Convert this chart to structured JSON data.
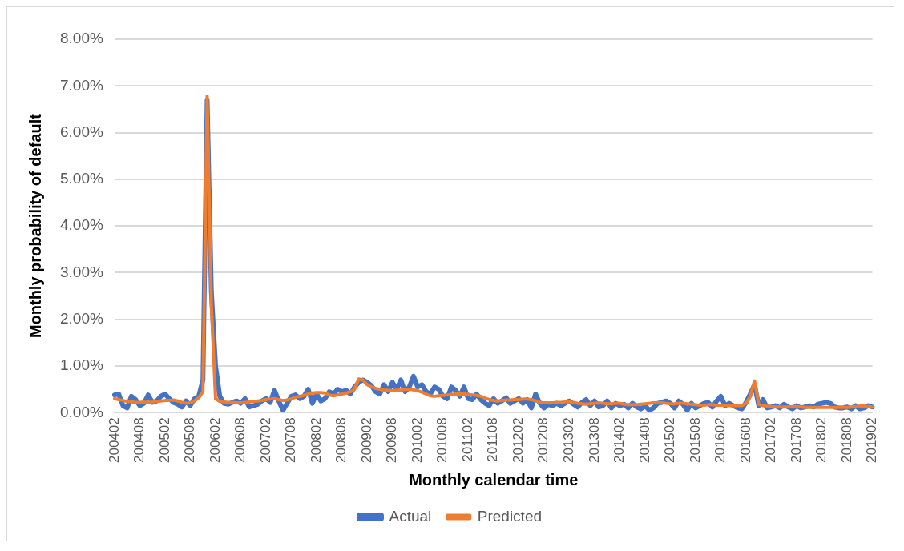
{
  "chart_data": {
    "type": "line",
    "xlabel": "Monthly calendar time",
    "ylabel": "Monthly probability of default",
    "categories": [
      "200402",
      null,
      null,
      null,
      null,
      null,
      "200408",
      null,
      null,
      null,
      null,
      null,
      "200502",
      null,
      null,
      null,
      null,
      null,
      "200508",
      null,
      null,
      null,
      null,
      null,
      "200602",
      null,
      null,
      null,
      null,
      null,
      "200608",
      null,
      null,
      null,
      null,
      null,
      "200702",
      null,
      null,
      null,
      null,
      null,
      "200708",
      null,
      null,
      null,
      null,
      null,
      "200802",
      null,
      null,
      null,
      null,
      null,
      "200808",
      null,
      null,
      null,
      null,
      null,
      "200902",
      null,
      null,
      null,
      null,
      null,
      "200908",
      null,
      null,
      null,
      null,
      null,
      "201002",
      null,
      null,
      null,
      null,
      null,
      "201008",
      null,
      null,
      null,
      null,
      null,
      "201102",
      null,
      null,
      null,
      null,
      null,
      "201108",
      null,
      null,
      null,
      null,
      null,
      "201202",
      null,
      null,
      null,
      null,
      null,
      "201208",
      null,
      null,
      null,
      null,
      null,
      "201302",
      null,
      null,
      null,
      null,
      null,
      "201308",
      null,
      null,
      null,
      null,
      null,
      "201402",
      null,
      null,
      null,
      null,
      null,
      "201408",
      null,
      null,
      null,
      null,
      null,
      "201502",
      null,
      null,
      null,
      null,
      null,
      "201508",
      null,
      null,
      null,
      null,
      null,
      "201602",
      null,
      null,
      null,
      null,
      null,
      "201608",
      null,
      null,
      null,
      null,
      null,
      "201702",
      null,
      null,
      null,
      null,
      null,
      "201708",
      null,
      null,
      null,
      null,
      null,
      "201802",
      null,
      null,
      null,
      null,
      null,
      "201808",
      null,
      null,
      null,
      null,
      null,
      "201902"
    ],
    "series": [
      {
        "name": "Actual",
        "color": "#4472c4",
        "values": [
          0.38,
          0.4,
          0.15,
          0.1,
          0.35,
          0.28,
          0.15,
          0.2,
          0.38,
          0.22,
          0.25,
          0.35,
          0.4,
          0.3,
          0.22,
          0.18,
          0.12,
          0.25,
          0.15,
          0.3,
          0.35,
          0.7,
          6.7,
          2.6,
          1.0,
          0.35,
          0.2,
          0.18,
          0.22,
          0.25,
          0.2,
          0.3,
          0.12,
          0.15,
          0.18,
          0.25,
          0.3,
          0.22,
          0.48,
          0.25,
          0.05,
          0.2,
          0.35,
          0.38,
          0.3,
          0.35,
          0.5,
          0.2,
          0.4,
          0.25,
          0.3,
          0.45,
          0.4,
          0.5,
          0.45,
          0.48,
          0.4,
          0.55,
          0.65,
          0.7,
          0.65,
          0.58,
          0.45,
          0.4,
          0.6,
          0.45,
          0.65,
          0.5,
          0.7,
          0.45,
          0.55,
          0.78,
          0.55,
          0.6,
          0.45,
          0.4,
          0.55,
          0.5,
          0.35,
          0.3,
          0.55,
          0.48,
          0.35,
          0.55,
          0.3,
          0.28,
          0.4,
          0.28,
          0.2,
          0.15,
          0.3,
          0.2,
          0.25,
          0.32,
          0.2,
          0.25,
          0.3,
          0.2,
          0.28,
          0.1,
          0.4,
          0.2,
          0.1,
          0.18,
          0.15,
          0.2,
          0.15,
          0.2,
          0.25,
          0.18,
          0.12,
          0.22,
          0.28,
          0.15,
          0.25,
          0.12,
          0.15,
          0.25,
          0.1,
          0.2,
          0.15,
          0.18,
          0.1,
          0.2,
          0.12,
          0.08,
          0.15,
          0.05,
          0.1,
          0.2,
          0.22,
          0.25,
          0.2,
          0.1,
          0.25,
          0.18,
          0.05,
          0.2,
          0.1,
          0.15,
          0.2,
          0.22,
          0.12,
          0.25,
          0.35,
          0.15,
          0.2,
          0.15,
          0.1,
          0.08,
          0.22,
          0.4,
          0.6,
          0.15,
          0.28,
          0.1,
          0.12,
          0.15,
          0.1,
          0.18,
          0.12,
          0.08,
          0.15,
          0.1,
          0.12,
          0.15,
          0.12,
          0.18,
          0.2,
          0.22,
          0.2,
          0.12,
          0.1,
          0.1,
          0.12,
          0.08,
          0.15,
          0.08,
          0.1,
          0.15,
          0.12
        ]
      },
      {
        "name": "Predicted",
        "color": "#ed7d31",
        "values": [
          0.3,
          0.28,
          0.26,
          0.24,
          0.23,
          0.22,
          0.22,
          0.23,
          0.22,
          0.23,
          0.24,
          0.25,
          0.26,
          0.26,
          0.27,
          0.25,
          0.22,
          0.2,
          0.21,
          0.25,
          0.32,
          0.45,
          6.78,
          2.3,
          0.3,
          0.24,
          0.23,
          0.22,
          0.22,
          0.21,
          0.21,
          0.22,
          0.23,
          0.24,
          0.25,
          0.26,
          0.28,
          0.29,
          0.3,
          0.28,
          0.26,
          0.27,
          0.3,
          0.33,
          0.35,
          0.37,
          0.4,
          0.42,
          0.43,
          0.43,
          0.42,
          0.38,
          0.36,
          0.38,
          0.4,
          0.42,
          0.45,
          0.5,
          0.72,
          0.7,
          0.6,
          0.55,
          0.52,
          0.5,
          0.48,
          0.48,
          0.47,
          0.48,
          0.48,
          0.5,
          0.5,
          0.49,
          0.47,
          0.44,
          0.4,
          0.36,
          0.35,
          0.36,
          0.37,
          0.38,
          0.39,
          0.4,
          0.4,
          0.4,
          0.39,
          0.38,
          0.37,
          0.35,
          0.31,
          0.28,
          0.26,
          0.25,
          0.26,
          0.27,
          0.27,
          0.28,
          0.28,
          0.29,
          0.29,
          0.28,
          0.25,
          0.22,
          0.21,
          0.21,
          0.21,
          0.22,
          0.22,
          0.23,
          0.23,
          0.22,
          0.2,
          0.19,
          0.18,
          0.19,
          0.2,
          0.21,
          0.2,
          0.19,
          0.19,
          0.2,
          0.2,
          0.18,
          0.17,
          0.17,
          0.17,
          0.18,
          0.19,
          0.2,
          0.21,
          0.21,
          0.21,
          0.2,
          0.19,
          0.19,
          0.2,
          0.2,
          0.19,
          0.18,
          0.17,
          0.16,
          0.16,
          0.17,
          0.17,
          0.16,
          0.16,
          0.16,
          0.15,
          0.15,
          0.15,
          0.15,
          0.2,
          0.35,
          0.68,
          0.18,
          0.15,
          0.14,
          0.13,
          0.12,
          0.12,
          0.12,
          0.12,
          0.13,
          0.13,
          0.12,
          0.11,
          0.11,
          0.11,
          0.11,
          0.11,
          0.11,
          0.11,
          0.11,
          0.11,
          0.11,
          0.11,
          0.12,
          0.13,
          0.14,
          0.14,
          0.13,
          0.12
        ]
      }
    ],
    "ylim": [
      0,
      8
    ],
    "yticks": [
      {
        "value": 0,
        "label": "0.00%"
      },
      {
        "value": 1,
        "label": "1.00%"
      },
      {
        "value": 2,
        "label": "2.00%"
      },
      {
        "value": 3,
        "label": "3.00%"
      },
      {
        "value": 4,
        "label": "4.00%"
      },
      {
        "value": 5,
        "label": "5.00%"
      },
      {
        "value": 6,
        "label": "6.00%"
      },
      {
        "value": 7,
        "label": "7.00%"
      },
      {
        "value": 8,
        "label": "8.00%"
      }
    ],
    "grid": "y",
    "legend": "bottom",
    "marker": "none",
    "line_style": "solid"
  }
}
